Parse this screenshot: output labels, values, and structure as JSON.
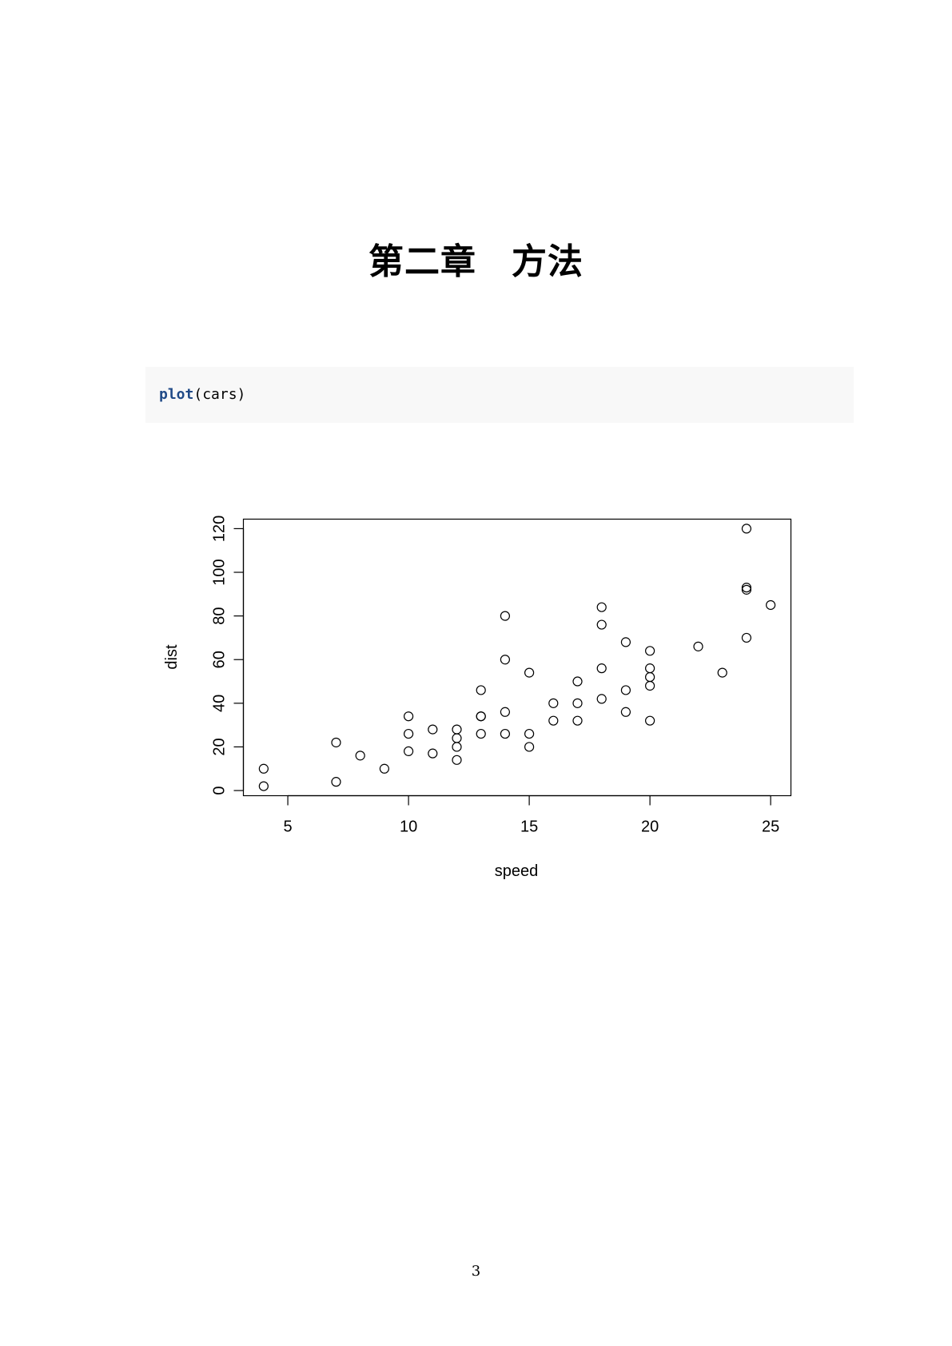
{
  "document": {
    "chapter_title_part1": "第二章",
    "chapter_title_part2": "方法",
    "code": {
      "function": "plot",
      "arguments": "(cars)"
    },
    "page_number": "3"
  },
  "chart_data": {
    "type": "scatter",
    "xlabel": "speed",
    "ylabel": "dist",
    "xlim": [
      3.16,
      25.84
    ],
    "ylim": [
      -2.36,
      124.36
    ],
    "x_ticks": [
      5,
      10,
      15,
      20,
      25
    ],
    "y_ticks": [
      0,
      20,
      40,
      60,
      80,
      100,
      120
    ],
    "grid": false,
    "legend": "none",
    "marker": "open-circle",
    "points": [
      {
        "x": 4,
        "y": 2
      },
      {
        "x": 4,
        "y": 10
      },
      {
        "x": 7,
        "y": 4
      },
      {
        "x": 7,
        "y": 22
      },
      {
        "x": 8,
        "y": 16
      },
      {
        "x": 9,
        "y": 10
      },
      {
        "x": 10,
        "y": 18
      },
      {
        "x": 10,
        "y": 26
      },
      {
        "x": 10,
        "y": 34
      },
      {
        "x": 11,
        "y": 17
      },
      {
        "x": 11,
        "y": 28
      },
      {
        "x": 12,
        "y": 14
      },
      {
        "x": 12,
        "y": 20
      },
      {
        "x": 12,
        "y": 24
      },
      {
        "x": 12,
        "y": 28
      },
      {
        "x": 13,
        "y": 26
      },
      {
        "x": 13,
        "y": 34
      },
      {
        "x": 13,
        "y": 34
      },
      {
        "x": 13,
        "y": 46
      },
      {
        "x": 14,
        "y": 26
      },
      {
        "x": 14,
        "y": 36
      },
      {
        "x": 14,
        "y": 60
      },
      {
        "x": 14,
        "y": 80
      },
      {
        "x": 15,
        "y": 20
      },
      {
        "x": 15,
        "y": 26
      },
      {
        "x": 15,
        "y": 54
      },
      {
        "x": 16,
        "y": 32
      },
      {
        "x": 16,
        "y": 40
      },
      {
        "x": 17,
        "y": 32
      },
      {
        "x": 17,
        "y": 40
      },
      {
        "x": 17,
        "y": 50
      },
      {
        "x": 18,
        "y": 42
      },
      {
        "x": 18,
        "y": 56
      },
      {
        "x": 18,
        "y": 76
      },
      {
        "x": 18,
        "y": 84
      },
      {
        "x": 19,
        "y": 36
      },
      {
        "x": 19,
        "y": 46
      },
      {
        "x": 19,
        "y": 68
      },
      {
        "x": 20,
        "y": 32
      },
      {
        "x": 20,
        "y": 48
      },
      {
        "x": 20,
        "y": 52
      },
      {
        "x": 20,
        "y": 56
      },
      {
        "x": 20,
        "y": 64
      },
      {
        "x": 22,
        "y": 66
      },
      {
        "x": 23,
        "y": 54
      },
      {
        "x": 24,
        "y": 70
      },
      {
        "x": 24,
        "y": 92
      },
      {
        "x": 24,
        "y": 93
      },
      {
        "x": 24,
        "y": 120
      },
      {
        "x": 25,
        "y": 85
      }
    ]
  }
}
